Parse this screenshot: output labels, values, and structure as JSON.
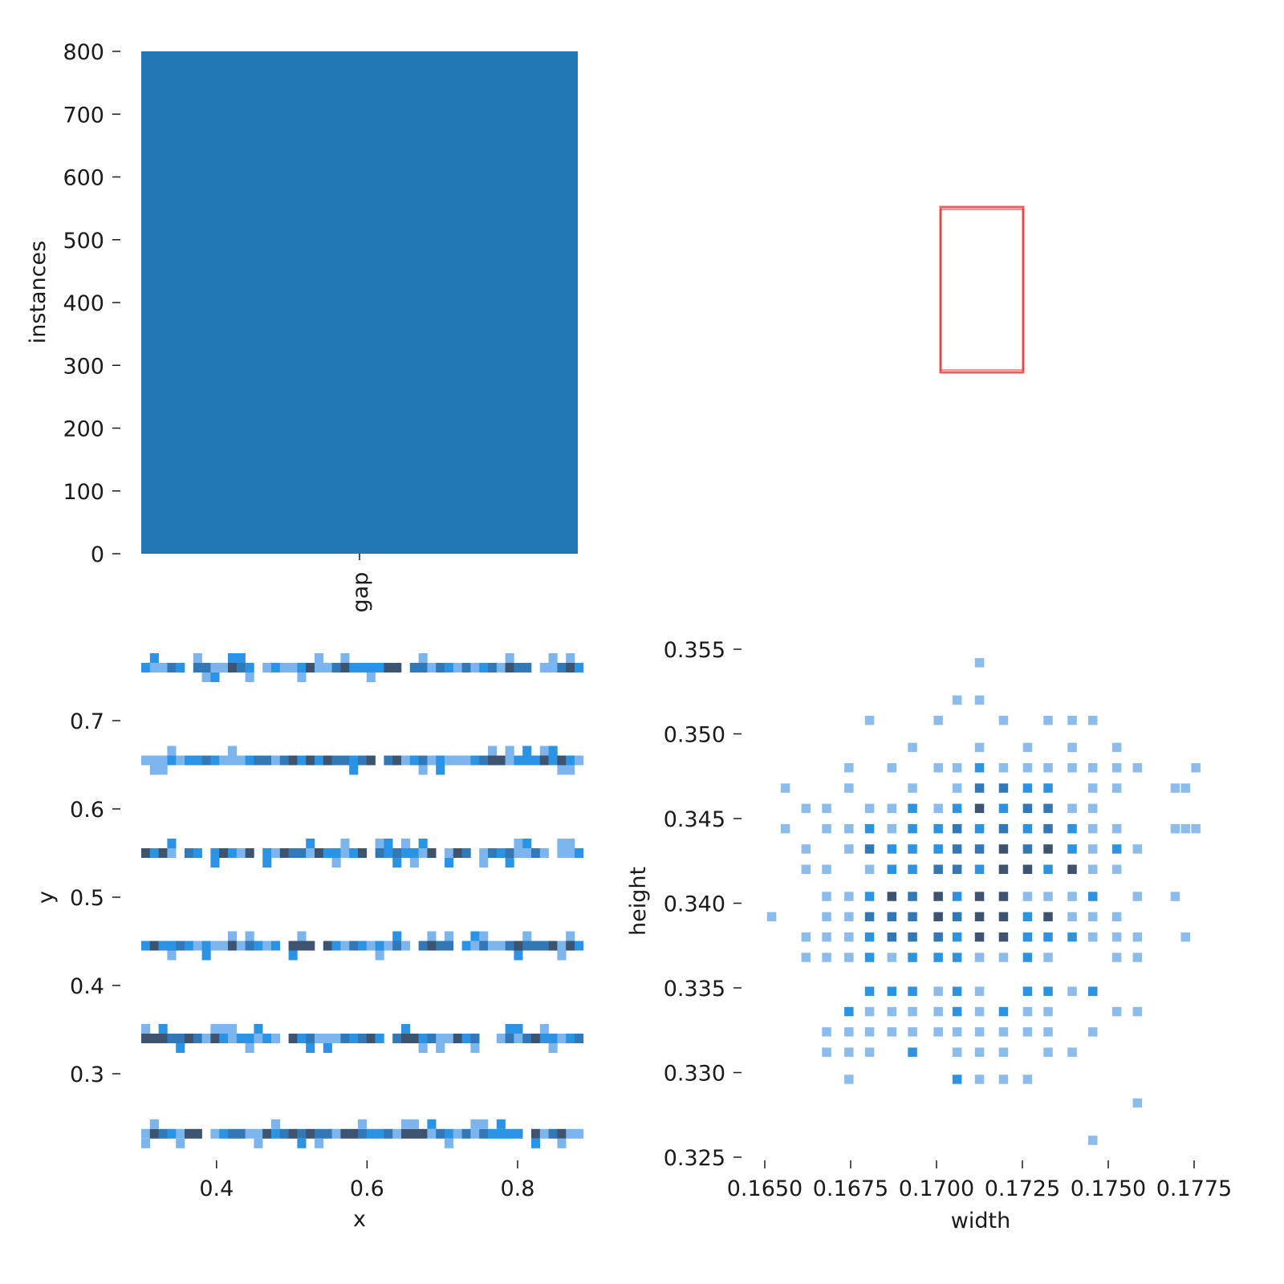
{
  "chart_data": [
    {
      "type": "bar",
      "categories": [
        "gap"
      ],
      "values": [
        800
      ],
      "xlabel": "",
      "ylabel": "instances",
      "ylim": [
        0,
        800
      ],
      "yticks": [
        "0",
        "100",
        "200",
        "300",
        "400",
        "500",
        "600",
        "700",
        "800"
      ],
      "colors": {
        "bar": "#2077b4"
      }
    },
    {
      "type": "other",
      "description_shapes": "overlaid outline of a box",
      "colors": {
        "box": "#e8272a"
      }
    },
    {
      "type": "heatmap",
      "xlabel": "x",
      "ylabel": "y",
      "xlim": [
        0.3,
        0.88
      ],
      "ylim": [
        0.22,
        0.77
      ],
      "xticks": [
        "0.4",
        "0.6",
        "0.8"
      ],
      "yticks": [
        "0.3",
        "0.4",
        "0.5",
        "0.6",
        "0.7"
      ],
      "bands": [
        {
          "y": 0.76,
          "gaps": [
            0.365,
            0.455,
            0.655,
            0.825
          ]
        },
        {
          "y": 0.655,
          "gaps": [
            0.62
          ]
        },
        {
          "y": 0.55,
          "gaps": [
            0.355,
            0.39,
            0.455,
            0.605,
            0.695,
            0.74,
            0.845
          ]
        },
        {
          "y": 0.445,
          "gaps": [
            0.49,
            0.535,
            0.66,
            0.72
          ]
        },
        {
          "y": 0.34,
          "gaps": [
            0.49,
            0.625,
            0.76
          ]
        },
        {
          "y": 0.232,
          "gaps": [
            0.39,
            0.81
          ]
        }
      ],
      "colors": {
        "light": "#7cb4ee",
        "mid": "#2b93e3",
        "deep": "#3378b6",
        "dark": "#3c5470"
      }
    },
    {
      "type": "heatmap",
      "xlabel": "width",
      "ylabel": "height",
      "xlim": [
        0.1645,
        0.1777
      ],
      "ylim": [
        0.3245,
        0.3557
      ],
      "xticks": [
        "0.1650",
        "0.1675",
        "0.1700",
        "0.1725",
        "0.1750",
        "0.1775"
      ],
      "ytick_values": [
        0.325,
        0.33,
        0.335,
        0.34,
        0.345,
        0.35,
        0.355
      ],
      "yticks": [
        "0.325",
        "0.330",
        "0.335",
        "0.340",
        "0.345",
        "0.350",
        "0.355"
      ],
      "cells": [
        [
          0.17125,
          0.3542,
          1
        ],
        [
          0.1706,
          0.352,
          1
        ],
        [
          0.17125,
          0.352,
          1
        ],
        [
          0.16805,
          0.3508,
          1
        ],
        [
          0.17005,
          0.3508,
          1
        ],
        [
          0.17195,
          0.3508,
          1
        ],
        [
          0.17325,
          0.3508,
          1
        ],
        [
          0.17395,
          0.3508,
          1
        ],
        [
          0.17455,
          0.3508,
          1
        ],
        [
          0.1693,
          0.3492,
          1
        ],
        [
          0.17125,
          0.3492,
          1
        ],
        [
          0.17265,
          0.3492,
          1
        ],
        [
          0.17395,
          0.3492,
          1
        ],
        [
          0.17525,
          0.3492,
          1
        ],
        [
          0.16745,
          0.348,
          1
        ],
        [
          0.1687,
          0.348,
          1
        ],
        [
          0.17005,
          0.348,
          1
        ],
        [
          0.1706,
          0.348,
          1
        ],
        [
          0.17125,
          0.348,
          2
        ],
        [
          0.17195,
          0.348,
          1
        ],
        [
          0.17265,
          0.348,
          1
        ],
        [
          0.17325,
          0.348,
          1
        ],
        [
          0.17395,
          0.348,
          1
        ],
        [
          0.17455,
          0.348,
          1
        ],
        [
          0.17525,
          0.348,
          1
        ],
        [
          0.17585,
          0.348,
          1
        ],
        [
          0.17755,
          0.348,
          1
        ],
        [
          0.1656,
          0.3468,
          1
        ],
        [
          0.16745,
          0.3468,
          1
        ],
        [
          0.1693,
          0.3468,
          1
        ],
        [
          0.1706,
          0.3468,
          1
        ],
        [
          0.17125,
          0.3468,
          3
        ],
        [
          0.17195,
          0.3468,
          3
        ],
        [
          0.17265,
          0.3468,
          2
        ],
        [
          0.17325,
          0.3468,
          2
        ],
        [
          0.17455,
          0.3468,
          1
        ],
        [
          0.17525,
          0.3468,
          1
        ],
        [
          0.17695,
          0.3468,
          1
        ],
        [
          0.17725,
          0.3468,
          1
        ],
        [
          0.1662,
          0.3456,
          1
        ],
        [
          0.1668,
          0.3456,
          1
        ],
        [
          0.16805,
          0.3456,
          1
        ],
        [
          0.1687,
          0.3456,
          1
        ],
        [
          0.1693,
          0.3456,
          2
        ],
        [
          0.17005,
          0.3456,
          1
        ],
        [
          0.1706,
          0.3456,
          2
        ],
        [
          0.17125,
          0.3456,
          4
        ],
        [
          0.17195,
          0.3456,
          2
        ],
        [
          0.17265,
          0.3456,
          3
        ],
        [
          0.17325,
          0.3456,
          3
        ],
        [
          0.17395,
          0.3456,
          1
        ],
        [
          0.17455,
          0.3456,
          1
        ],
        [
          0.1656,
          0.3444,
          1
        ],
        [
          0.1668,
          0.3444,
          1
        ],
        [
          0.16745,
          0.3444,
          1
        ],
        [
          0.16805,
          0.3444,
          2
        ],
        [
          0.1687,
          0.3444,
          1
        ],
        [
          0.1693,
          0.3444,
          2
        ],
        [
          0.17005,
          0.3444,
          2
        ],
        [
          0.1706,
          0.3444,
          3
        ],
        [
          0.17125,
          0.3444,
          2
        ],
        [
          0.17195,
          0.3444,
          3
        ],
        [
          0.17265,
          0.3444,
          2
        ],
        [
          0.17325,
          0.3444,
          3
        ],
        [
          0.17395,
          0.3444,
          2
        ],
        [
          0.17455,
          0.3444,
          1
        ],
        [
          0.17525,
          0.3444,
          1
        ],
        [
          0.17695,
          0.3444,
          1
        ],
        [
          0.17725,
          0.3444,
          1
        ],
        [
          0.17755,
          0.3444,
          1
        ],
        [
          0.1662,
          0.3432,
          1
        ],
        [
          0.16745,
          0.3432,
          1
        ],
        [
          0.16805,
          0.3432,
          3
        ],
        [
          0.1687,
          0.3432,
          2
        ],
        [
          0.1693,
          0.3432,
          2
        ],
        [
          0.17005,
          0.3432,
          2
        ],
        [
          0.1706,
          0.3432,
          3
        ],
        [
          0.17125,
          0.3432,
          3
        ],
        [
          0.17195,
          0.3432,
          4
        ],
        [
          0.17265,
          0.3432,
          3
        ],
        [
          0.17325,
          0.3432,
          4
        ],
        [
          0.17395,
          0.3432,
          2
        ],
        [
          0.17455,
          0.3432,
          1
        ],
        [
          0.17525,
          0.3432,
          2
        ],
        [
          0.17585,
          0.3432,
          1
        ],
        [
          0.1662,
          0.342,
          1
        ],
        [
          0.1668,
          0.342,
          1
        ],
        [
          0.16805,
          0.342,
          1
        ],
        [
          0.1687,
          0.342,
          2
        ],
        [
          0.1693,
          0.342,
          2
        ],
        [
          0.17005,
          0.342,
          3
        ],
        [
          0.1706,
          0.342,
          3
        ],
        [
          0.17125,
          0.342,
          2
        ],
        [
          0.17195,
          0.342,
          4
        ],
        [
          0.17265,
          0.342,
          4
        ],
        [
          0.17325,
          0.342,
          2
        ],
        [
          0.17395,
          0.342,
          4
        ],
        [
          0.17455,
          0.342,
          1
        ],
        [
          0.17525,
          0.342,
          1
        ],
        [
          0.1668,
          0.3404,
          1
        ],
        [
          0.16745,
          0.3404,
          1
        ],
        [
          0.16805,
          0.3404,
          2
        ],
        [
          0.1687,
          0.3404,
          4
        ],
        [
          0.1693,
          0.3404,
          3
        ],
        [
          0.17005,
          0.3404,
          4
        ],
        [
          0.1706,
          0.3404,
          2
        ],
        [
          0.17125,
          0.3404,
          4
        ],
        [
          0.17195,
          0.3404,
          4
        ],
        [
          0.17265,
          0.3404,
          1
        ],
        [
          0.17325,
          0.3404,
          1
        ],
        [
          0.17395,
          0.3404,
          1
        ],
        [
          0.17455,
          0.3404,
          2
        ],
        [
          0.17585,
          0.3404,
          1
        ],
        [
          0.17695,
          0.3404,
          1
        ],
        [
          0.1652,
          0.3392,
          1
        ],
        [
          0.1668,
          0.3392,
          1
        ],
        [
          0.16745,
          0.3392,
          1
        ],
        [
          0.16805,
          0.3392,
          3
        ],
        [
          0.1687,
          0.3392,
          3
        ],
        [
          0.1693,
          0.3392,
          3
        ],
        [
          0.17005,
          0.3392,
          4
        ],
        [
          0.1706,
          0.3392,
          3
        ],
        [
          0.17125,
          0.3392,
          4
        ],
        [
          0.17195,
          0.3392,
          4
        ],
        [
          0.17265,
          0.3392,
          2
        ],
        [
          0.17325,
          0.3392,
          4
        ],
        [
          0.17395,
          0.3392,
          1
        ],
        [
          0.17455,
          0.3392,
          1
        ],
        [
          0.17525,
          0.3392,
          1
        ],
        [
          0.1662,
          0.338,
          1
        ],
        [
          0.1668,
          0.338,
          1
        ],
        [
          0.16745,
          0.338,
          1
        ],
        [
          0.16805,
          0.338,
          2
        ],
        [
          0.1687,
          0.338,
          3
        ],
        [
          0.1693,
          0.338,
          3
        ],
        [
          0.17005,
          0.338,
          3
        ],
        [
          0.1706,
          0.338,
          2
        ],
        [
          0.17125,
          0.338,
          4
        ],
        [
          0.17195,
          0.338,
          4
        ],
        [
          0.17265,
          0.338,
          2
        ],
        [
          0.17325,
          0.338,
          2
        ],
        [
          0.17395,
          0.338,
          2
        ],
        [
          0.17455,
          0.338,
          1
        ],
        [
          0.17525,
          0.338,
          1
        ],
        [
          0.17585,
          0.338,
          1
        ],
        [
          0.17725,
          0.338,
          1
        ],
        [
          0.1662,
          0.3368,
          1
        ],
        [
          0.1668,
          0.3368,
          1
        ],
        [
          0.16745,
          0.3368,
          1
        ],
        [
          0.16805,
          0.3368,
          2
        ],
        [
          0.1687,
          0.3368,
          1
        ],
        [
          0.1693,
          0.3368,
          2
        ],
        [
          0.17005,
          0.3368,
          2
        ],
        [
          0.1706,
          0.3368,
          2
        ],
        [
          0.17125,
          0.3368,
          1
        ],
        [
          0.17195,
          0.3368,
          1
        ],
        [
          0.17265,
          0.3368,
          2
        ],
        [
          0.17325,
          0.3368,
          1
        ],
        [
          0.17525,
          0.3368,
          1
        ],
        [
          0.17585,
          0.3368,
          1
        ],
        [
          0.16805,
          0.3348,
          2
        ],
        [
          0.1687,
          0.3348,
          2
        ],
        [
          0.1693,
          0.3348,
          2
        ],
        [
          0.17005,
          0.3348,
          1
        ],
        [
          0.1706,
          0.3348,
          2
        ],
        [
          0.17125,
          0.3348,
          1
        ],
        [
          0.17265,
          0.3348,
          2
        ],
        [
          0.17325,
          0.3348,
          2
        ],
        [
          0.17395,
          0.3348,
          1
        ],
        [
          0.17455,
          0.3348,
          2
        ],
        [
          0.16745,
          0.3336,
          2
        ],
        [
          0.16805,
          0.3336,
          1
        ],
        [
          0.1687,
          0.3336,
          1
        ],
        [
          0.1693,
          0.3336,
          1
        ],
        [
          0.17005,
          0.3336,
          1
        ],
        [
          0.1706,
          0.3336,
          2
        ],
        [
          0.17125,
          0.3336,
          1
        ],
        [
          0.17195,
          0.3336,
          2
        ],
        [
          0.17265,
          0.3336,
          1
        ],
        [
          0.17325,
          0.3336,
          1
        ],
        [
          0.17525,
          0.3336,
          1
        ],
        [
          0.17585,
          0.3336,
          1
        ],
        [
          0.1668,
          0.3324,
          1
        ],
        [
          0.16745,
          0.3324,
          1
        ],
        [
          0.16805,
          0.3324,
          1
        ],
        [
          0.1687,
          0.3324,
          1
        ],
        [
          0.1693,
          0.3324,
          1
        ],
        [
          0.17005,
          0.3324,
          1
        ],
        [
          0.1706,
          0.3324,
          1
        ],
        [
          0.17125,
          0.3324,
          1
        ],
        [
          0.17195,
          0.3324,
          1
        ],
        [
          0.17265,
          0.3324,
          1
        ],
        [
          0.17325,
          0.3324,
          1
        ],
        [
          0.17455,
          0.3324,
          1
        ],
        [
          0.1668,
          0.3312,
          1
        ],
        [
          0.16745,
          0.3312,
          1
        ],
        [
          0.16805,
          0.3312,
          1
        ],
        [
          0.1693,
          0.3312,
          2
        ],
        [
          0.1706,
          0.3312,
          1
        ],
        [
          0.17125,
          0.3312,
          1
        ],
        [
          0.17195,
          0.3312,
          1
        ],
        [
          0.17325,
          0.3312,
          1
        ],
        [
          0.17395,
          0.3312,
          1
        ],
        [
          0.16745,
          0.3296,
          1
        ],
        [
          0.1706,
          0.3296,
          2
        ],
        [
          0.17125,
          0.3296,
          1
        ],
        [
          0.17195,
          0.3296,
          1
        ],
        [
          0.17265,
          0.3296,
          1
        ],
        [
          0.17585,
          0.3282,
          1
        ],
        [
          0.17455,
          0.326,
          1
        ]
      ],
      "colors": {
        "1": "#8cbcec",
        "2": "#2c93e2",
        "3": "#3378b6",
        "4": "#3c5470"
      }
    }
  ]
}
